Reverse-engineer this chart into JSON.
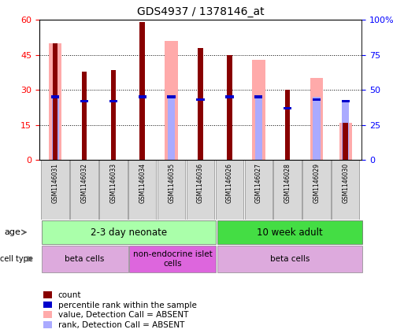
{
  "title": "GDS4937 / 1378146_at",
  "samples": [
    "GSM1146031",
    "GSM1146032",
    "GSM1146033",
    "GSM1146034",
    "GSM1146035",
    "GSM1146036",
    "GSM1146026",
    "GSM1146027",
    "GSM1146028",
    "GSM1146029",
    "GSM1146030"
  ],
  "count_values": [
    50,
    38,
    38.5,
    59,
    0,
    48,
    45,
    0,
    30,
    0,
    16
  ],
  "rank_pct": [
    45,
    42,
    42,
    45,
    45,
    43,
    45,
    45,
    37,
    43,
    42
  ],
  "absent_value_bars": [
    50,
    0,
    0,
    0,
    51,
    0,
    0,
    43,
    0,
    35,
    16
  ],
  "absent_rank_pct": [
    45,
    0,
    0,
    0,
    45,
    0,
    0,
    45,
    0,
    45,
    42
  ],
  "ylim_left": [
    0,
    60
  ],
  "ylim_right": [
    0,
    100
  ],
  "yticks_left": [
    0,
    15,
    30,
    45,
    60
  ],
  "yticks_right": [
    0,
    25,
    50,
    75,
    100
  ],
  "yticklabels_left": [
    "0",
    "15",
    "30",
    "45",
    "60"
  ],
  "yticklabels_right": [
    "0",
    "25",
    "50",
    "75",
    "100%"
  ],
  "age_groups": [
    {
      "label": "2-3 day neonate",
      "start": 0,
      "end": 6,
      "color": "#aaffaa"
    },
    {
      "label": "10 week adult",
      "start": 6,
      "end": 11,
      "color": "#44dd44"
    }
  ],
  "cell_type_groups": [
    {
      "label": "beta cells",
      "start": 0,
      "end": 3,
      "color": "#ddaadd"
    },
    {
      "label": "non-endocrine islet\ncells",
      "start": 3,
      "end": 6,
      "color": "#dd66dd"
    },
    {
      "label": "beta cells",
      "start": 6,
      "end": 11,
      "color": "#ddaadd"
    }
  ],
  "color_count": "#880000",
  "color_rank": "#0000cc",
  "color_absent_value": "#ffaaaa",
  "color_absent_rank": "#aaaaff",
  "legend_items": [
    {
      "color": "#880000",
      "label": "count"
    },
    {
      "color": "#0000cc",
      "label": "percentile rank within the sample"
    },
    {
      "color": "#ffaaaa",
      "label": "value, Detection Call = ABSENT"
    },
    {
      "color": "#aaaaff",
      "label": "rank, Detection Call = ABSENT"
    }
  ]
}
